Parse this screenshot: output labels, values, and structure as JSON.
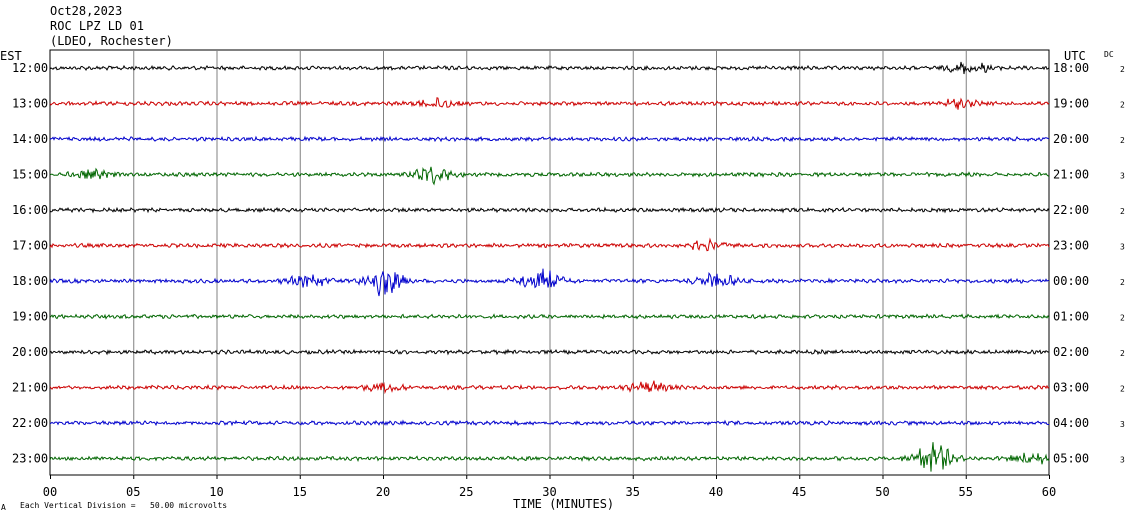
{
  "header": {
    "date": "Oct28,2023",
    "station": "ROC LPZ LD 01",
    "location": "(LDEO, Rochester)"
  },
  "footer": {
    "scale_note": "Each Vertical Division =   50.00 microvolts",
    "corner_mark": "A"
  },
  "chart_data": {
    "type": "line",
    "title": "ROC LPZ LD 01",
    "xlabel": "TIME (MINUTES)",
    "left_axis_label": "EST",
    "right_axis_label": "UTC",
    "dc_label": "DC",
    "xlim": [
      0,
      60
    ],
    "x_ticks": [
      "00",
      "05",
      "10",
      "15",
      "20",
      "25",
      "30",
      "35",
      "40",
      "45",
      "50",
      "55",
      "60"
    ],
    "vertical_grid": true,
    "trace_colors": [
      "#000000",
      "#cc0000",
      "#0000cc",
      "#006600"
    ],
    "rows": [
      {
        "est": "12:00",
        "utc": "18:00",
        "dc": "2",
        "events": [
          {
            "minute": 55.2,
            "amp": 2.0
          }
        ]
      },
      {
        "est": "13:00",
        "utc": "19:00",
        "dc": "2",
        "events": [
          {
            "minute": 23.3,
            "amp": 1.5
          },
          {
            "minute": 54.5,
            "amp": 1.4
          }
        ]
      },
      {
        "est": "14:00",
        "utc": "20:00",
        "dc": "2",
        "events": []
      },
      {
        "est": "15:00",
        "utc": "21:00",
        "dc": "3",
        "events": [
          {
            "minute": 23.0,
            "amp": 2.8
          },
          {
            "minute": 2.5,
            "amp": 1.3
          }
        ]
      },
      {
        "est": "16:00",
        "utc": "22:00",
        "dc": "2",
        "events": []
      },
      {
        "est": "17:00",
        "utc": "23:00",
        "dc": "3",
        "events": [
          {
            "minute": 39.5,
            "amp": 1.4
          }
        ]
      },
      {
        "est": "18:00",
        "utc": "00:00",
        "dc": "2",
        "events": [
          {
            "minute": 20.0,
            "amp": 4.5
          },
          {
            "minute": 29.5,
            "amp": 4.0
          },
          {
            "minute": 40.0,
            "amp": 2.8
          },
          {
            "minute": 15.5,
            "amp": 2.2
          }
        ]
      },
      {
        "est": "19:00",
        "utc": "01:00",
        "dc": "2",
        "events": []
      },
      {
        "est": "20:00",
        "utc": "02:00",
        "dc": "2",
        "events": []
      },
      {
        "est": "21:00",
        "utc": "03:00",
        "dc": "2",
        "events": [
          {
            "minute": 36.0,
            "amp": 1.8
          },
          {
            "minute": 20.0,
            "amp": 1.2
          }
        ]
      },
      {
        "est": "22:00",
        "utc": "04:00",
        "dc": "3",
        "events": []
      },
      {
        "est": "23:00",
        "utc": "05:00",
        "dc": "3",
        "events": [
          {
            "minute": 53.0,
            "amp": 5.0
          },
          {
            "minute": 59.0,
            "amp": 1.8
          }
        ]
      }
    ]
  }
}
